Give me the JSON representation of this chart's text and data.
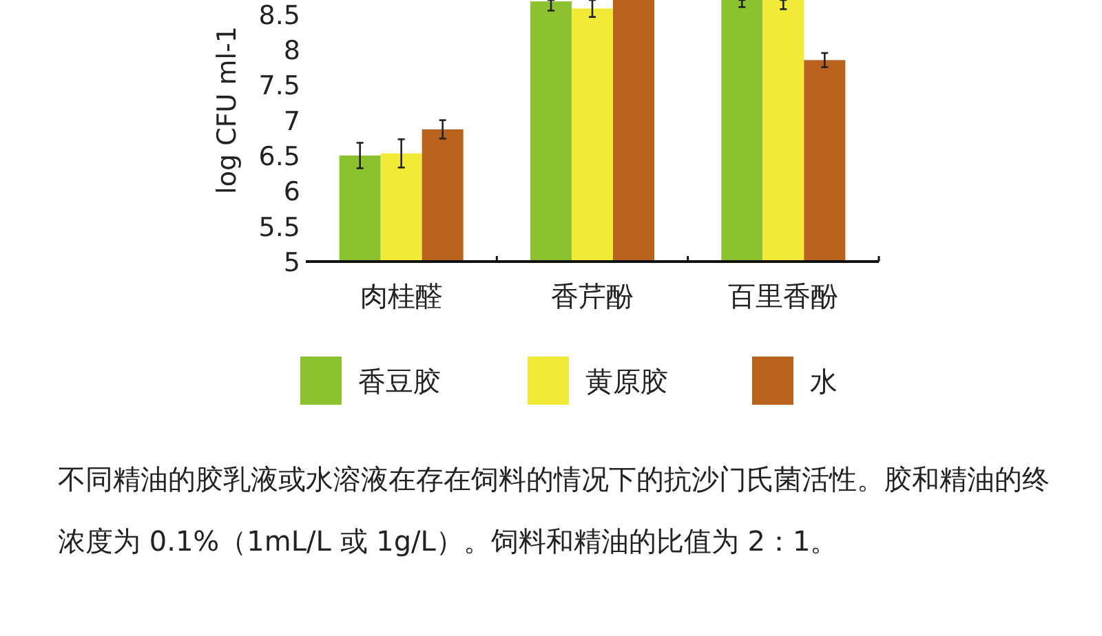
{
  "chart_data": {
    "type": "bar",
    "ylabel": "log CFU ml-1",
    "categories": [
      "肉桂醛",
      "香芹酚",
      "百里香酚"
    ],
    "series": [
      {
        "name": "香豆胶",
        "color": "#8cc230",
        "values": [
          6.5,
          8.68,
          8.7
        ],
        "errors": [
          0.18,
          [
            8.55,
            8.7
          ],
          [
            8.6,
            8.7
          ]
        ]
      },
      {
        "name": "黄原胶",
        "color": "#f2ea38",
        "values": [
          6.53,
          8.58,
          8.7
        ],
        "errors": [
          0.2,
          0.12,
          [
            8.57,
            8.7
          ]
        ]
      },
      {
        "name": "水",
        "color": "#b8621e",
        "values": [
          6.87,
          8.7,
          7.85
        ],
        "errors": [
          0.13,
          null,
          0.1
        ]
      }
    ],
    "ylim": [
      5,
      8.7
    ],
    "yticks": [
      5,
      5.5,
      6,
      6.5,
      7,
      7.5,
      8,
      8.5
    ],
    "grid": false,
    "legend": "bottom",
    "annotations": [
      "不同精油的胶乳液或水溶液在存在饲料的情况下的抗沙门氏菌活性。胶和精油的终浓度为 0.1%（1mL/L 或 1g/L）。饲料和精油的比值为 2：1。"
    ]
  }
}
